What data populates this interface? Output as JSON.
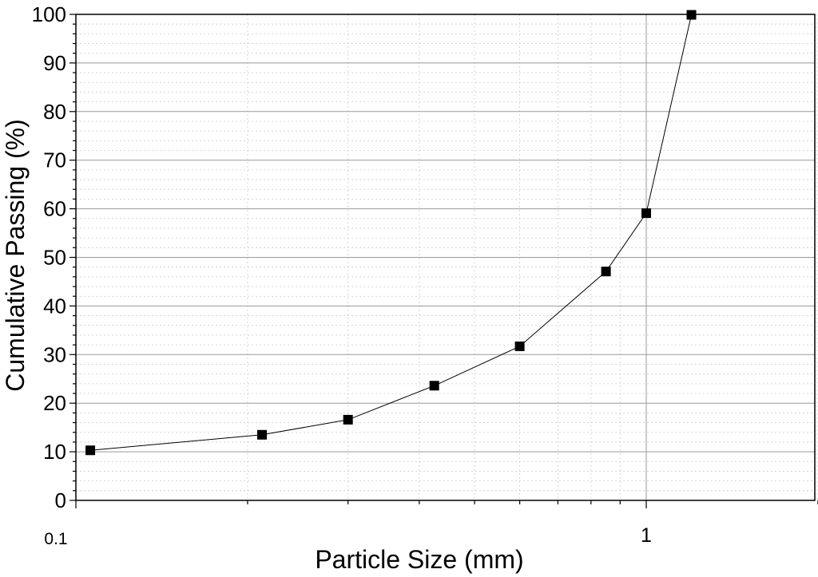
{
  "chart_data": {
    "type": "scatter",
    "xlabel": "Particle Size (mm)",
    "ylabel": "Cumulative Passing (%)",
    "xscale": "log",
    "xlim": [
      0.1,
      2.0
    ],
    "ylim": [
      0,
      100
    ],
    "x_tick_labels": [
      "0.1",
      "1"
    ],
    "y_tick_labels": [
      "0",
      "10",
      "20",
      "30",
      "40",
      "50",
      "60",
      "70",
      "80",
      "90",
      "100"
    ],
    "grid": "on (major and minor)",
    "marker": "square",
    "line": "connected",
    "series": [
      {
        "x": [
          0.106,
          0.212,
          0.3,
          0.425,
          0.6,
          0.85,
          1.0,
          1.2
        ],
        "y": [
          10.3,
          13.5,
          16.6,
          23.6,
          31.7,
          47.1,
          59.1,
          99.9
        ]
      }
    ],
    "colors": {
      "line": "#000000",
      "marker": "#000000",
      "grid_major": "#999999",
      "grid_minor": "#cccccc"
    }
  }
}
